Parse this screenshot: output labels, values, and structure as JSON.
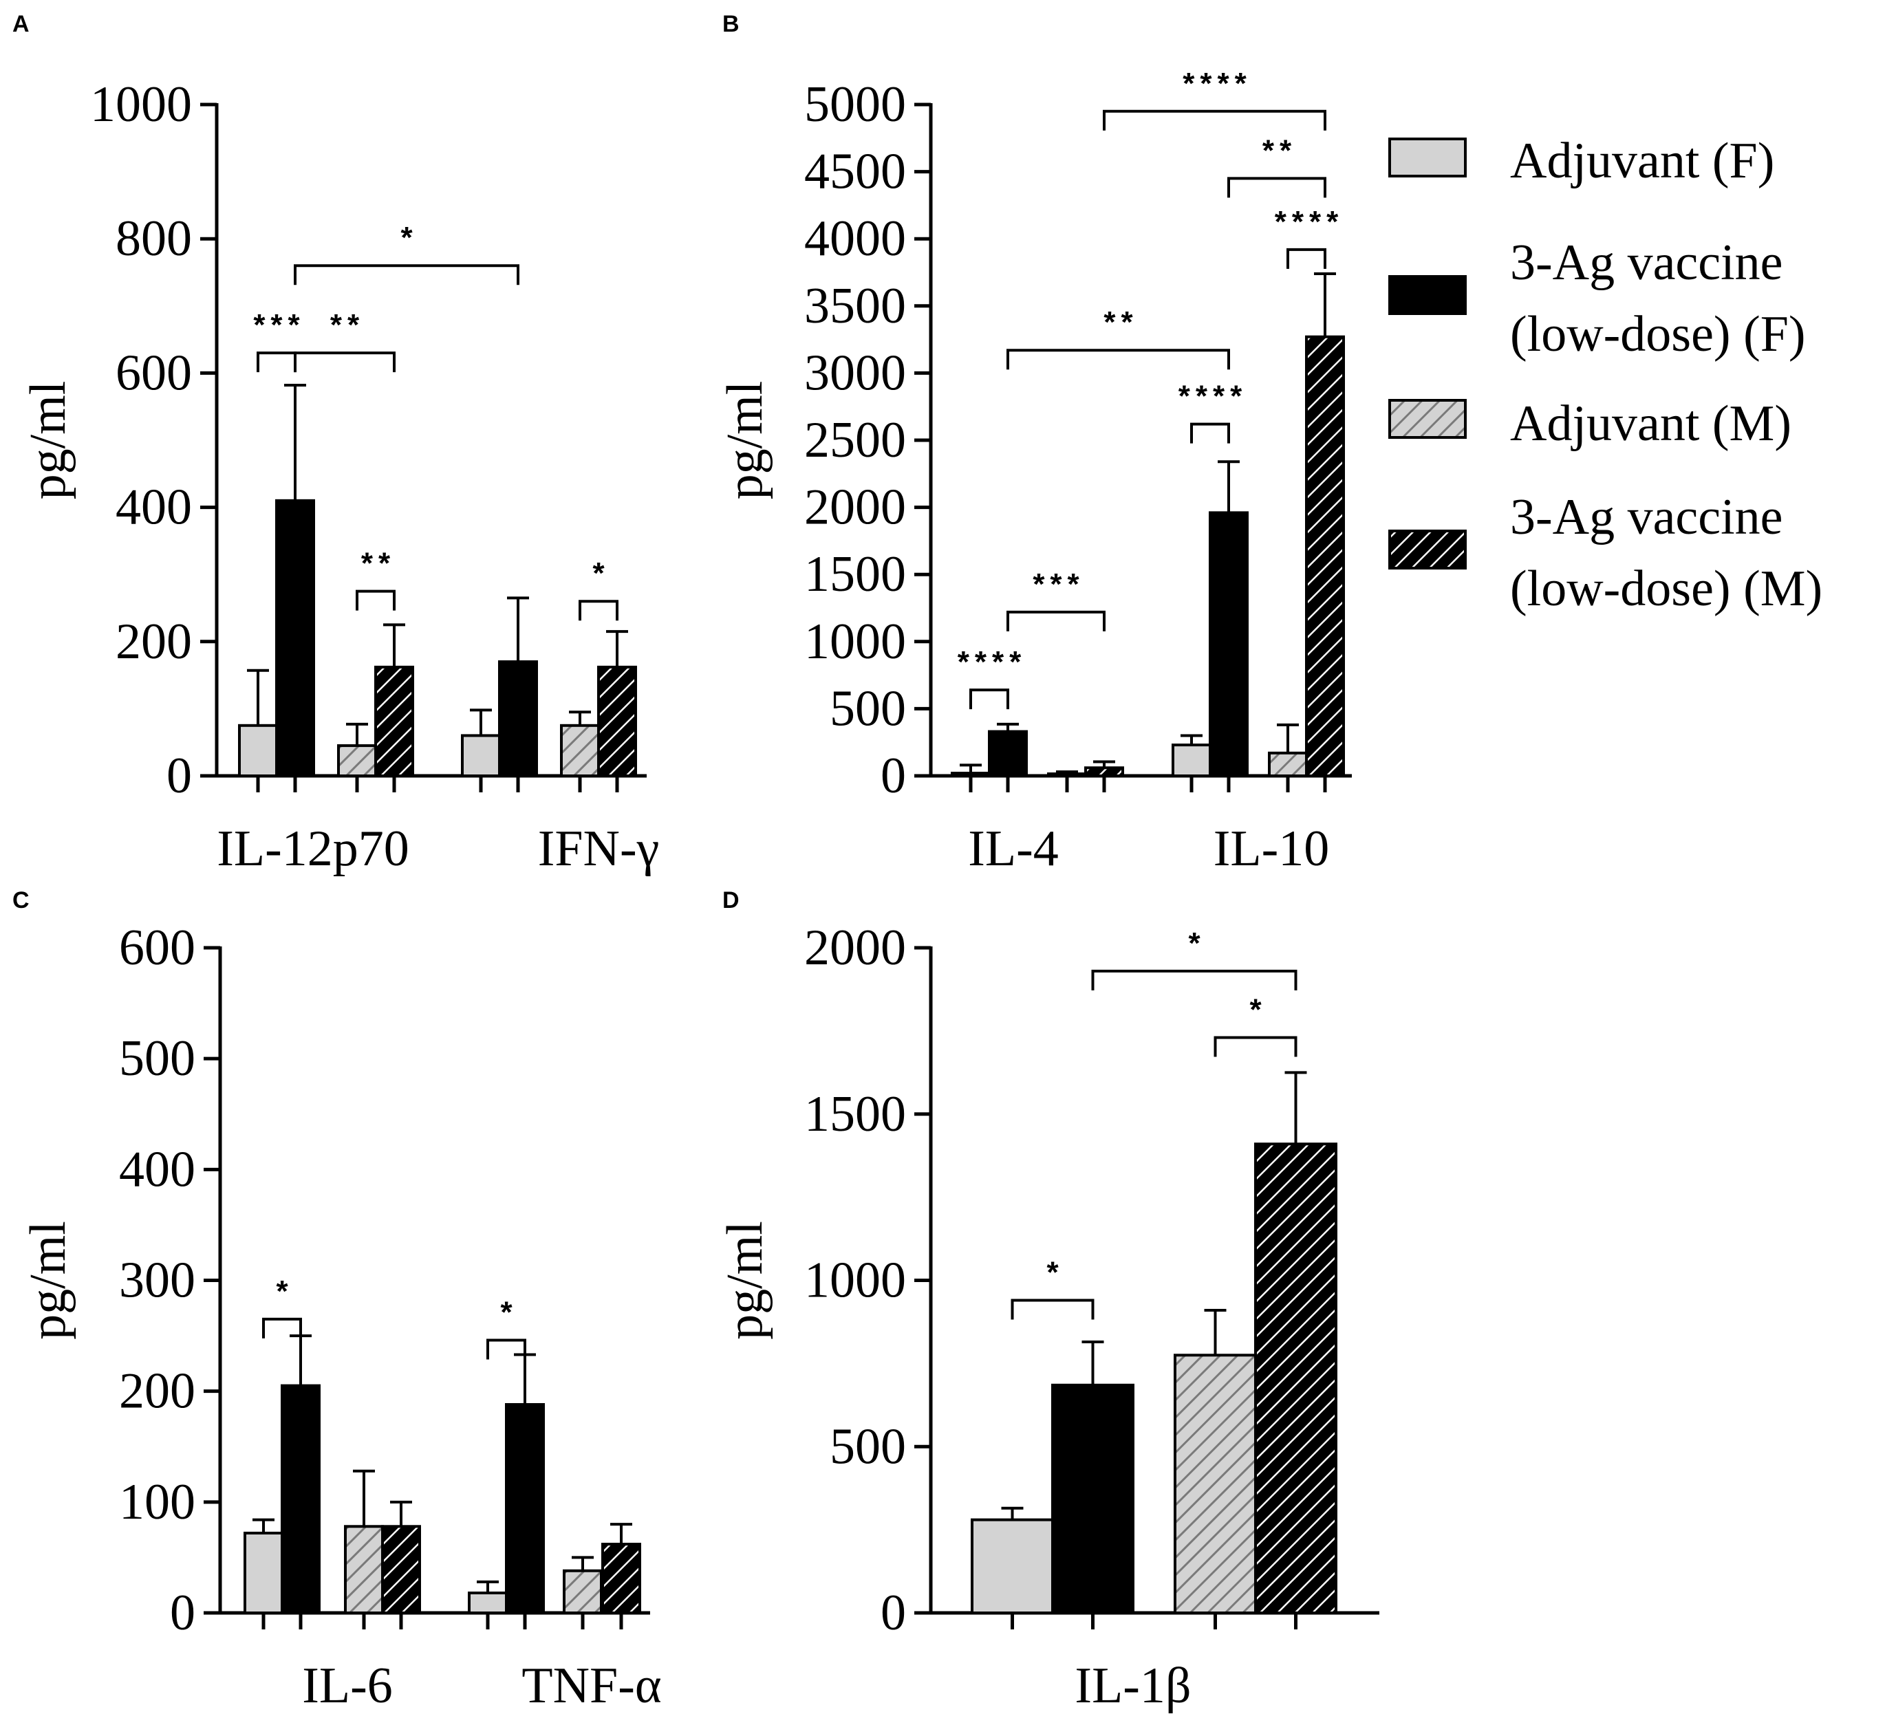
{
  "colors": {
    "adjuvant_f": "#d3d3d3",
    "vaccine_f": "#000000",
    "adjuvant_m_bg": "#d3d3d3",
    "adjuvant_m_hatch": "#7a7a7a",
    "vaccine_m_bg": "#000000",
    "vaccine_m_hatch": "#ffffff"
  },
  "legend": {
    "items": [
      {
        "key": "adjuvant_f",
        "lines": [
          "Adjuvant (F)"
        ]
      },
      {
        "key": "vaccine_f",
        "lines": [
          "3-Ag vaccine",
          "(low-dose) (F)"
        ]
      },
      {
        "key": "adjuvant_m",
        "lines": [
          "Adjuvant (M)"
        ]
      },
      {
        "key": "vaccine_m",
        "lines": [
          "3-Ag vaccine",
          "(low-dose) (M)"
        ]
      }
    ]
  },
  "chart_data": [
    {
      "panel": "A",
      "type": "bar",
      "ylabel": "pg/ml",
      "ylim": [
        0,
        1000
      ],
      "yticks": [
        "0",
        "200",
        "400",
        "600",
        "800",
        "1000"
      ],
      "categories": [
        "IL-12p70",
        "IFN-γ"
      ],
      "series": [
        {
          "name": "Adjuvant (F)",
          "key": "adjuvant_f",
          "values": [
            75,
            60
          ],
          "errors": [
            82,
            38
          ]
        },
        {
          "name": "3-Ag vaccine (low-dose) (F)",
          "key": "vaccine_f",
          "values": [
            410,
            170
          ],
          "errors": [
            172,
            95
          ]
        },
        {
          "name": "Adjuvant (M)",
          "key": "adjuvant_m",
          "values": [
            45,
            75
          ],
          "errors": [
            32,
            20
          ]
        },
        {
          "name": "3-Ag vaccine (low-dose) (M)",
          "key": "vaccine_m",
          "values": [
            162,
            162
          ],
          "errors": [
            63,
            53
          ]
        }
      ],
      "significance": [
        {
          "label": "***",
          "from": [
            0,
            0
          ],
          "to": [
            0,
            1
          ],
          "level": 630
        },
        {
          "label": "**",
          "from": [
            0,
            1
          ],
          "to": [
            0,
            3
          ],
          "level": 630
        },
        {
          "label": "*",
          "from": [
            0,
            1
          ],
          "to": [
            1,
            1
          ],
          "level": 760
        },
        {
          "label": "**",
          "from": [
            0,
            2
          ],
          "to": [
            0,
            3
          ],
          "level": 275
        },
        {
          "label": "*",
          "from": [
            1,
            2
          ],
          "to": [
            1,
            3
          ],
          "level": 260
        }
      ]
    },
    {
      "panel": "B",
      "type": "bar",
      "ylabel": "pg/ml",
      "ylim": [
        0,
        5000
      ],
      "yticks": [
        "0",
        "500",
        "1000",
        "1500",
        "2000",
        "2500",
        "3000",
        "3500",
        "4000",
        "4500",
        "5000"
      ],
      "categories": [
        "IL-4",
        "IL-10"
      ],
      "series": [
        {
          "name": "Adjuvant (F)",
          "key": "adjuvant_f",
          "values": [
            20,
            230
          ],
          "errors": [
            60,
            70
          ]
        },
        {
          "name": "3-Ag vaccine (low-dose) (F)",
          "key": "vaccine_f",
          "values": [
            330,
            1960
          ],
          "errors": [
            55,
            380
          ]
        },
        {
          "name": "Adjuvant (M)",
          "key": "adjuvant_m",
          "values": [
            15,
            170
          ],
          "errors": [
            15,
            210
          ]
        },
        {
          "name": "3-Ag vaccine (low-dose) (M)",
          "key": "vaccine_m",
          "values": [
            60,
            3270
          ],
          "errors": [
            45,
            470
          ]
        }
      ],
      "significance": [
        {
          "label": "****",
          "from": [
            0,
            0
          ],
          "to": [
            0,
            1
          ],
          "level": 640
        },
        {
          "label": "***",
          "from": [
            0,
            1
          ],
          "to": [
            0,
            3
          ],
          "level": 1220
        },
        {
          "label": "**",
          "from": [
            0,
            1
          ],
          "to": [
            1,
            1
          ],
          "level": 3170
        },
        {
          "label": "****",
          "from": [
            1,
            0
          ],
          "to": [
            1,
            1
          ],
          "level": 2620
        },
        {
          "label": "****",
          "from": [
            1,
            2
          ],
          "to": [
            1,
            3
          ],
          "level": 3920
        },
        {
          "label": "**",
          "from": [
            1,
            1
          ],
          "to": [
            1,
            3
          ],
          "level": 4450
        },
        {
          "label": "****",
          "from": [
            0,
            3
          ],
          "to": [
            1,
            3
          ],
          "level": 4950
        }
      ]
    },
    {
      "panel": "C",
      "type": "bar",
      "ylabel": "pg/ml",
      "ylim": [
        0,
        600
      ],
      "yticks": [
        "0",
        "100",
        "200",
        "300",
        "400",
        "500",
        "600"
      ],
      "categories": [
        "IL-6",
        "TNF-α"
      ],
      "series": [
        {
          "name": "Adjuvant (F)",
          "key": "adjuvant_f",
          "values": [
            72,
            18
          ],
          "errors": [
            12,
            10
          ]
        },
        {
          "name": "3-Ag vaccine (low-dose) (F)",
          "key": "vaccine_f",
          "values": [
            205,
            188
          ],
          "errors": [
            45,
            45
          ]
        },
        {
          "name": "Adjuvant (M)",
          "key": "adjuvant_m",
          "values": [
            78,
            38
          ],
          "errors": [
            50,
            12
          ]
        },
        {
          "name": "3-Ag vaccine (low-dose) (M)",
          "key": "vaccine_m",
          "values": [
            78,
            62
          ],
          "errors": [
            22,
            18
          ]
        }
      ],
      "significance": [
        {
          "label": "*",
          "from": [
            0,
            0
          ],
          "to": [
            0,
            1
          ],
          "level": 265
        },
        {
          "label": "*",
          "from": [
            1,
            0
          ],
          "to": [
            1,
            1
          ],
          "level": 246
        }
      ]
    },
    {
      "panel": "D",
      "type": "bar",
      "ylabel": "pg/ml",
      "ylim": [
        0,
        2000
      ],
      "yticks": [
        "0",
        "500",
        "1000",
        "1500",
        "2000"
      ],
      "categories": [
        "IL-1β"
      ],
      "series": [
        {
          "name": "Adjuvant (F)",
          "key": "adjuvant_f",
          "values": [
            280
          ],
          "errors": [
            35
          ]
        },
        {
          "name": "3-Ag vaccine (low-dose) (F)",
          "key": "vaccine_f",
          "values": [
            685
          ],
          "errors": [
            130
          ]
        },
        {
          "name": "Adjuvant (M)",
          "key": "adjuvant_m",
          "values": [
            775
          ],
          "errors": [
            135
          ]
        },
        {
          "name": "3-Ag vaccine (low-dose) (M)",
          "key": "vaccine_m",
          "values": [
            1410
          ],
          "errors": [
            215
          ]
        }
      ],
      "significance": [
        {
          "label": "*",
          "from": [
            0,
            0
          ],
          "to": [
            0,
            1
          ],
          "level": 940
        },
        {
          "label": "*",
          "from": [
            0,
            2
          ],
          "to": [
            0,
            3
          ],
          "level": 1730
        },
        {
          "label": "*",
          "from": [
            0,
            1
          ],
          "to": [
            0,
            3
          ],
          "level": 1930
        }
      ]
    }
  ]
}
